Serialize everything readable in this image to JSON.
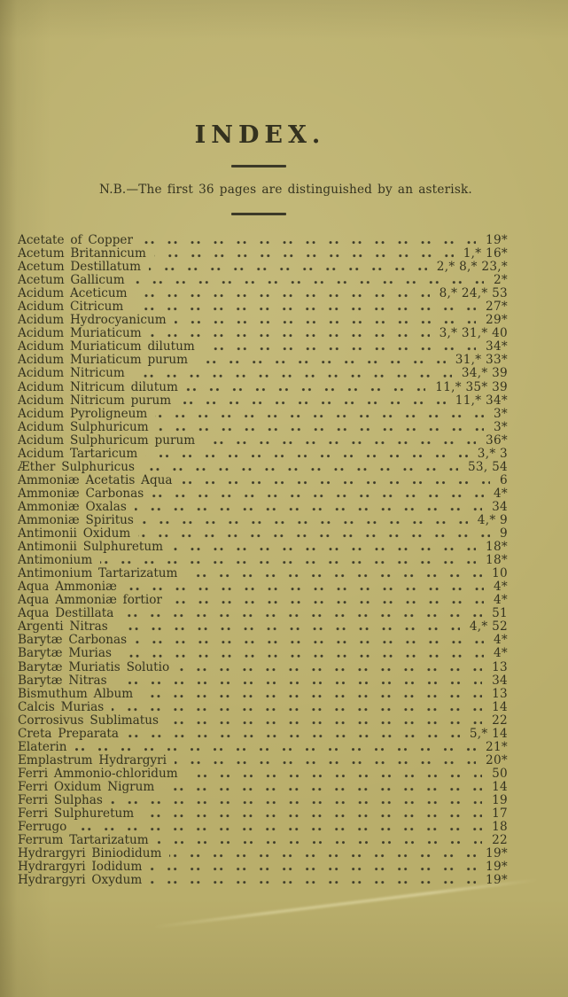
{
  "page": {
    "title": "INDEX.",
    "note": "N.B.—The first 36 pages are distinguished by an asterisk."
  },
  "colors": {
    "paper": "#b9ae6b",
    "ink": "#35331f"
  },
  "index": {
    "entries": [
      {
        "name": "Acetate of Copper",
        "pages": "19*"
      },
      {
        "name": "Acetum Britannicum",
        "pages": "1,* 16*"
      },
      {
        "name": "Acetum Destillatum",
        "pages": "2,* 8,* 23,*"
      },
      {
        "name": "Acetum Gallicum",
        "pages": "2*"
      },
      {
        "name": "Acidum Aceticum",
        "pages": "8,* 24,* 53"
      },
      {
        "name": "Acidum Citricum",
        "pages": "27*"
      },
      {
        "name": "Acidum Hydrocyanicum",
        "pages": "29*"
      },
      {
        "name": "Acidum Muriaticum",
        "pages": "3,* 31,* 40"
      },
      {
        "name": "Acidum Muriaticum dilutum",
        "pages": "34*"
      },
      {
        "name": "Acidum Muriaticum purum",
        "pages": "31,* 33*"
      },
      {
        "name": "Acidum Nitricum",
        "pages": "34,* 39"
      },
      {
        "name": "Acidum Nitricum dilutum",
        "pages": "11,* 35* 39"
      },
      {
        "name": "Acidum Nitricum purum",
        "pages": "11,* 34*"
      },
      {
        "name": "Acidum Pyroligneum",
        "pages": "3*"
      },
      {
        "name": "Acidum Sulphuricum",
        "pages": "3*"
      },
      {
        "name": "Acidum Sulphuricum purum",
        "pages": "36*"
      },
      {
        "name": "Acidum Tartaricum",
        "pages": "3,* 3"
      },
      {
        "name": "Æther Sulphuricus",
        "pages": "53, 54"
      },
      {
        "name": "Ammoniæ Acetatis Aqua",
        "pages": "6"
      },
      {
        "name": "Ammoniæ Carbonas",
        "pages": "4*"
      },
      {
        "name": "Ammoniæ Oxalas",
        "pages": "34"
      },
      {
        "name": "Ammoniæ Spiritus",
        "pages": "4,* 9"
      },
      {
        "name": "Antimonii Oxidum",
        "pages": "9"
      },
      {
        "name": "Antimonii Sulphuretum",
        "pages": "18*"
      },
      {
        "name": "Antimonium",
        "pages": "18*"
      },
      {
        "name": "Antimonium Tartarizatum",
        "pages": "10"
      },
      {
        "name": "Aqua Ammoniæ",
        "pages": "4*"
      },
      {
        "name": "Aqua Ammoniæ fortior",
        "pages": "4*"
      },
      {
        "name": "Aqua Destillata",
        "pages": "51"
      },
      {
        "name": "Argenti Nitras",
        "pages": "4,* 52"
      },
      {
        "name": "Barytæ Carbonas",
        "pages": "4*"
      },
      {
        "name": "Barytæ Murias",
        "pages": "4*"
      },
      {
        "name": "Barytæ Muriatis Solutio",
        "pages": "13"
      },
      {
        "name": "Barytæ Nitras",
        "pages": "34"
      },
      {
        "name": "Bismuthum Album",
        "pages": "13"
      },
      {
        "name": "Calcis Murias",
        "pages": "14"
      },
      {
        "name": "Corrosivus Sublimatus",
        "pages": "22"
      },
      {
        "name": "Creta Preparata",
        "pages": "5,* 14"
      },
      {
        "name": "Elaterin",
        "pages": "21*"
      },
      {
        "name": "Emplastrum Hydrargyri",
        "pages": "20*"
      },
      {
        "name": "Ferri Ammonio-chloridum",
        "pages": "50"
      },
      {
        "name": "Ferri Oxidum Nigrum",
        "pages": "14"
      },
      {
        "name": "Ferri Sulphas",
        "pages": "19"
      },
      {
        "name": "Ferri Sulphuretum",
        "pages": "17"
      },
      {
        "name": "Ferrugo",
        "pages": "18"
      },
      {
        "name": "Ferrum Tartarizatum",
        "pages": "22"
      },
      {
        "name": "Hydrargyri Biniodidum",
        "pages": "19*"
      },
      {
        "name": "Hydrargyri Iodidum",
        "pages": "19*"
      },
      {
        "name": "Hydrargyri Oxydum",
        "pages": "19*"
      }
    ]
  }
}
